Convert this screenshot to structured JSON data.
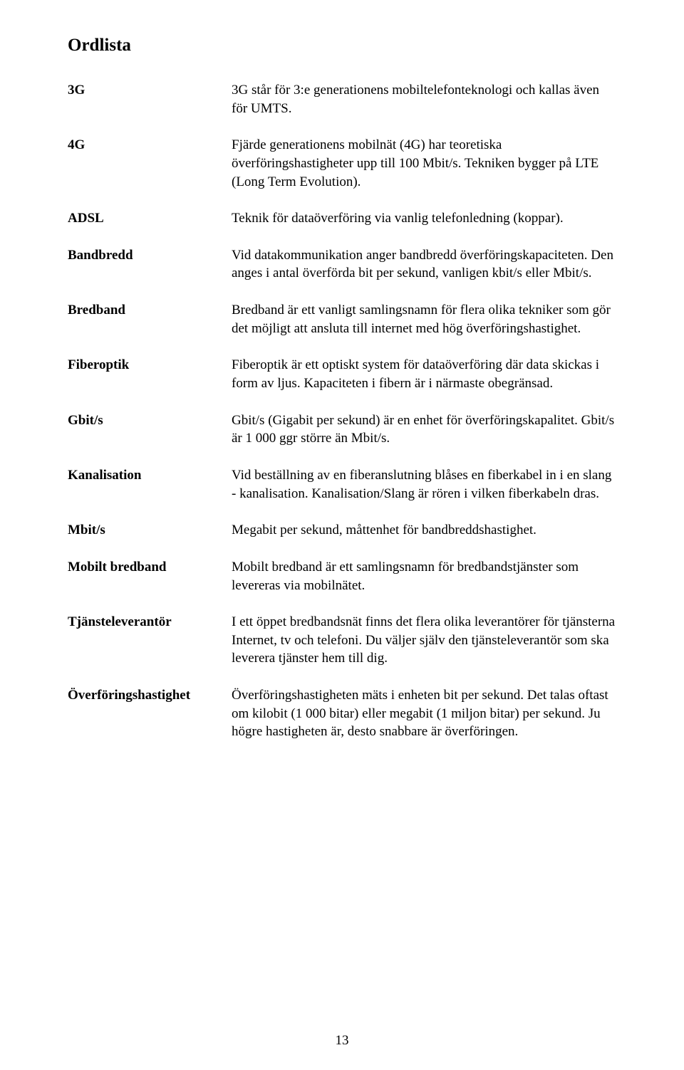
{
  "title": "Ordlista",
  "entries": [
    {
      "term": "3G",
      "definition": "3G står för 3:e generationens mobiltelefonteknologi och kallas även för UMTS."
    },
    {
      "term": "4G",
      "definition": "Fjärde generationens mobilnät (4G) har teoretiska överföringshastigheter upp till 100 Mbit/s. Tekniken bygger på LTE (Long Term Evolution)."
    },
    {
      "term": "ADSL",
      "definition": "Teknik för dataöverföring via vanlig telefonledning (koppar)."
    },
    {
      "term": "Bandbredd",
      "definition": "Vid datakommunikation anger bandbredd överföringskapaciteten. Den anges i antal överförda bit per sekund, vanligen kbit/s eller Mbit/s."
    },
    {
      "term": "Bredband",
      "definition": "Bredband är ett vanligt samlingsnamn för flera olika tekniker som gör det möjligt att ansluta till internet med hög överföringshastighet."
    },
    {
      "term": "Fiberoptik",
      "definition": "Fiberoptik är ett optiskt system för dataöverföring där data skickas i form av ljus. Kapaciteten i fibern är i närmaste obegränsad."
    },
    {
      "term": "Gbit/s",
      "definition": "Gbit/s (Gigabit per sekund) är en enhet för överföringskapalitet. Gbit/s är 1 000 ggr större än Mbit/s."
    },
    {
      "term": "Kanalisation",
      "definition": "Vid beställning av en fiberanslutning blåses en fiberkabel in i en slang - kanalisation. Kanalisation/Slang är rören i vilken fiberkabeln dras."
    },
    {
      "term": "Mbit/s",
      "definition": "Megabit per sekund, måttenhet för bandbreddshastighet."
    },
    {
      "term": "Mobilt bredband",
      "definition": "Mobilt bredband är ett samlingsnamn för bredbandstjänster som levereras via mobilnätet."
    },
    {
      "term": "Tjänsteleverantör",
      "definition": "I ett öppet bredbandsnät finns det flera olika leverantörer för tjänsterna Internet, tv och telefoni. Du väljer själv den tjänsteleverantör som ska leverera tjänster hem till dig."
    },
    {
      "term": "Överföringshastighet",
      "definition": "Överföringshastigheten mäts i enheten bit per sekund. Det talas oftast om kilobit (1 000 bitar) eller megabit (1 miljon bitar) per sekund. Ju högre hastigheten är, desto snabbare är överföringen."
    }
  ],
  "page_number": "13"
}
